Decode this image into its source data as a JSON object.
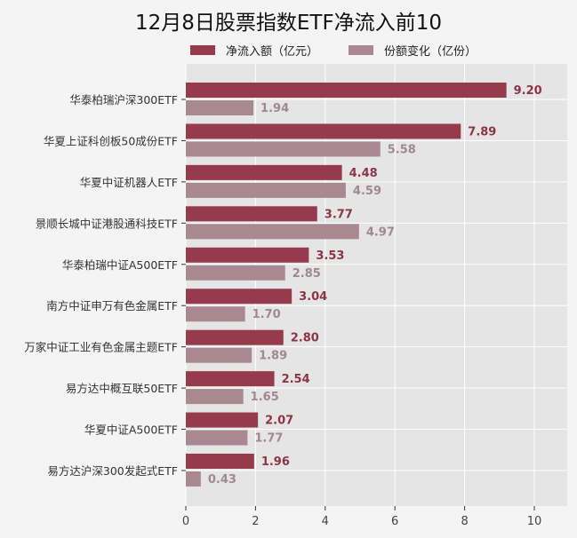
{
  "chart_data": {
    "type": "bar",
    "orientation": "horizontal",
    "title": "12月8日股票指数ETF净流入前10",
    "categories": [
      "华泰柏瑞沪深300ETF",
      "华夏上证科创板50成份ETF",
      "华夏中证机器人ETF",
      "景顺长城中证港股通科技ETF",
      "华泰柏瑞中证A500ETF",
      "南方中证申万有色金属ETF",
      "万家中证工业有色金属主题ETF",
      "易方达中概互联50ETF",
      "华夏中证A500ETF",
      "易方达沪深300发起式ETF"
    ],
    "series": [
      {
        "name": "净流入额（亿元）",
        "color": "#963b4c",
        "label_color": "#8e3346",
        "values": [
          9.2,
          7.89,
          4.48,
          3.77,
          3.53,
          3.04,
          2.8,
          2.54,
          2.07,
          1.96
        ]
      },
      {
        "name": "份额变化（亿份）",
        "color": "#a98892",
        "label_color": "#a08790",
        "values": [
          1.94,
          5.58,
          4.59,
          4.97,
          2.85,
          1.7,
          1.89,
          1.65,
          1.77,
          0.43
        ]
      }
    ],
    "xlim": [
      0,
      11
    ],
    "xticks": [
      0,
      2,
      4,
      6,
      8,
      10
    ],
    "grid": true,
    "legend": "top"
  }
}
